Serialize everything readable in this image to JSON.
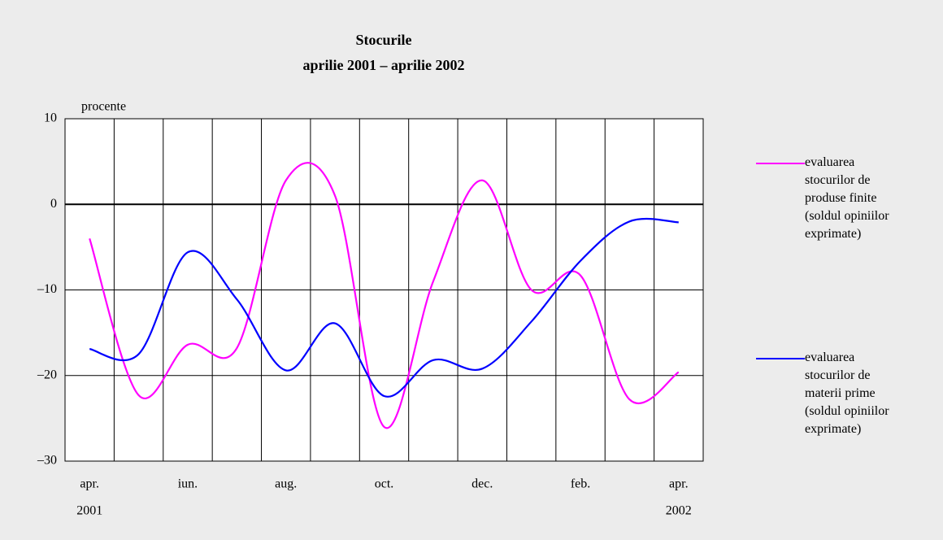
{
  "chart_data": {
    "type": "line",
    "title": "Stocurile",
    "subtitle": "aprilie 2001 – aprilie 2002",
    "y_axis_label": "procente",
    "categories": [
      "apr.",
      null,
      "iun.",
      null,
      "aug.",
      null,
      "oct.",
      null,
      "dec.",
      null,
      "feb.",
      null,
      "apr."
    ],
    "category_sublabels": [
      "2001",
      null,
      null,
      null,
      null,
      null,
      null,
      null,
      null,
      null,
      null,
      null,
      "2002"
    ],
    "series": [
      {
        "name": "evaluarea stocurilor de produse finite (soldul opiniilor exprimate)",
        "color": "#ff00ff",
        "values": [
          -4,
          -22.3,
          -16.4,
          -16.8,
          2.8,
          1.0,
          -26,
          -9,
          2.8,
          -10,
          -8.3,
          -22.8,
          -19.6
        ]
      },
      {
        "name": "evaluarea stocurilor de materii prime (soldul opiniilor exprimate)",
        "color": "#0000ff",
        "values": [
          -16.9,
          -17.5,
          -5.6,
          -11.1,
          -19.4,
          -13.9,
          -22.4,
          -18.2,
          -19.2,
          -13.7,
          -6.6,
          -2.0,
          -2.1
        ]
      }
    ],
    "ylim": [
      -30,
      10
    ],
    "yticks": [
      {
        "value": -30,
        "label": "–30"
      },
      {
        "value": -20,
        "label": "–20"
      },
      {
        "value": -10,
        "label": "–10"
      },
      0,
      10
    ],
    "grid": true,
    "smooth": true,
    "legend": "right"
  }
}
